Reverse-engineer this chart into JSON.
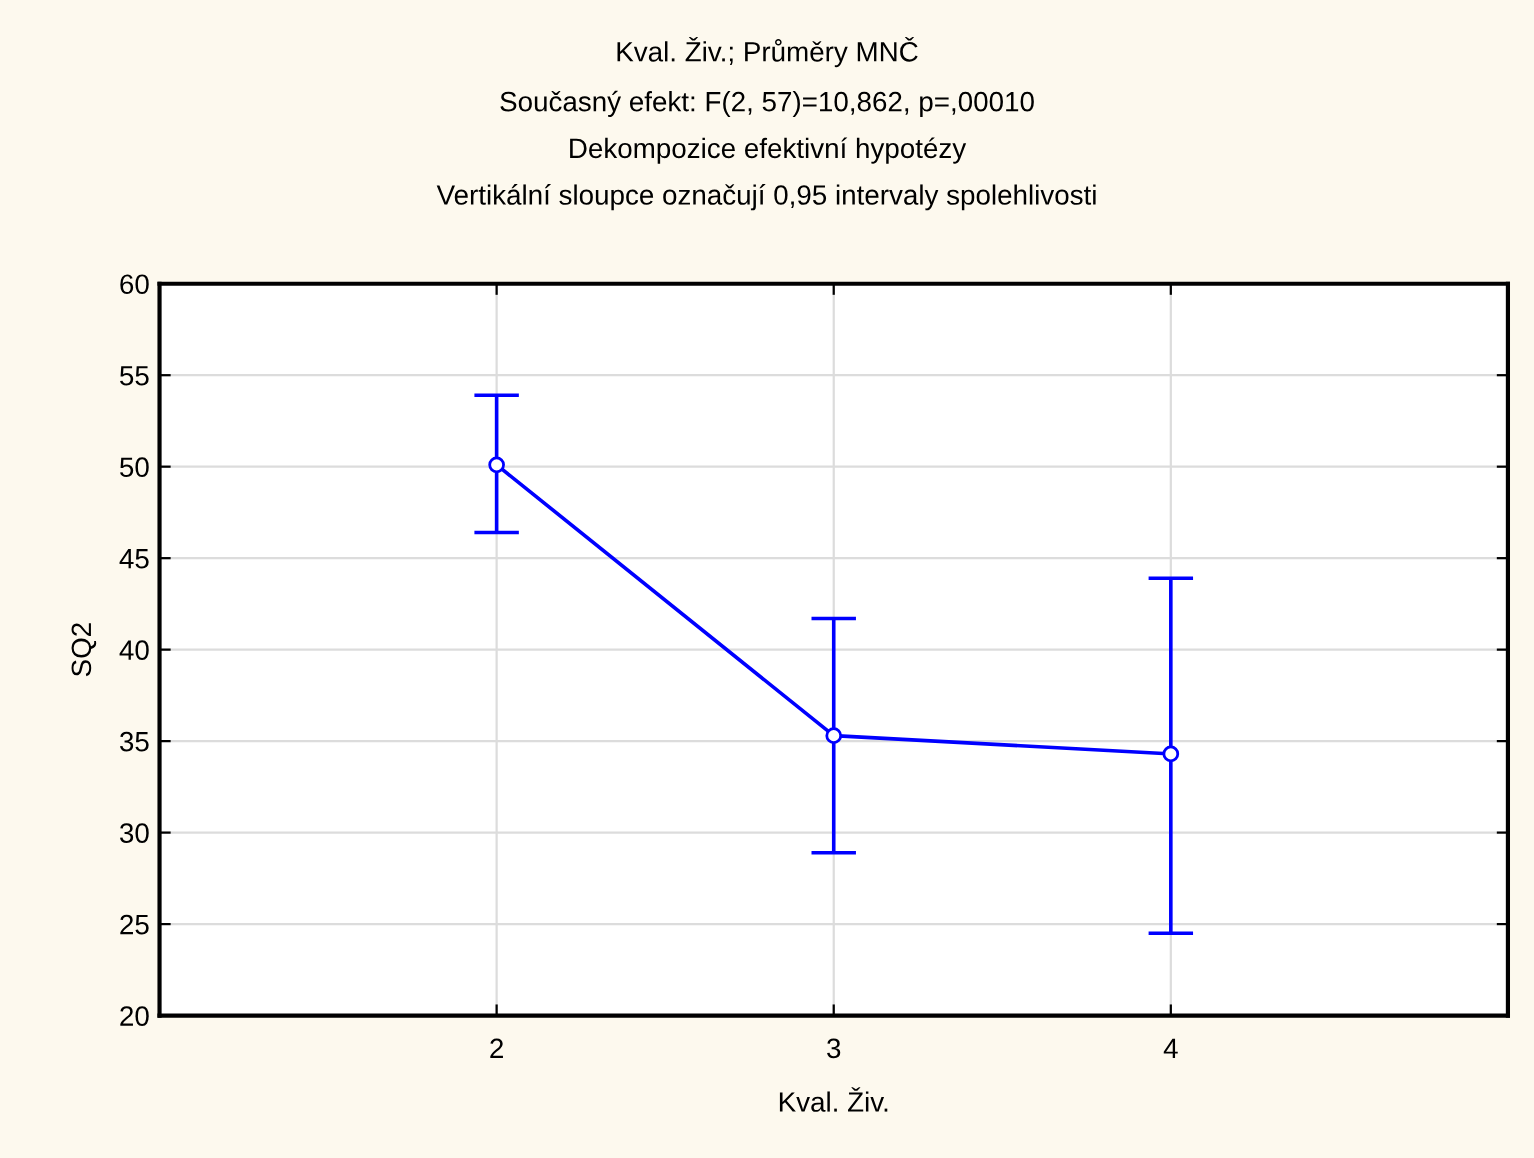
{
  "chart_data": {
    "type": "line",
    "title": "Kval. Živ.; Průměry MNČ",
    "subtitle": "Současný efekt: F(2, 57)=10,862, p=,00010\nDekompozice efektivní hypotézy\nVertikální sloupce označují 0,95 intervaly spolehlivosti",
    "xlabel": "Kval. Živ.",
    "ylabel": "SQ2",
    "x": [
      2,
      3,
      4
    ],
    "series": [
      {
        "color": "#0000ff",
        "values": [
          50.1,
          35.3,
          34.3
        ],
        "errors": [
          [
            46.4,
            53.9
          ],
          [
            28.9,
            41.7
          ],
          [
            24.5,
            43.9
          ]
        ]
      }
    ],
    "xlim": [
      1,
      5
    ],
    "xticks": [
      2,
      3,
      4
    ],
    "ylim": [
      20,
      60
    ],
    "yticks": [
      20,
      25,
      30,
      35,
      40,
      45,
      50,
      55,
      60
    ],
    "grid": true,
    "marker": "circle",
    "line_style": "solid",
    "legend": false
  }
}
